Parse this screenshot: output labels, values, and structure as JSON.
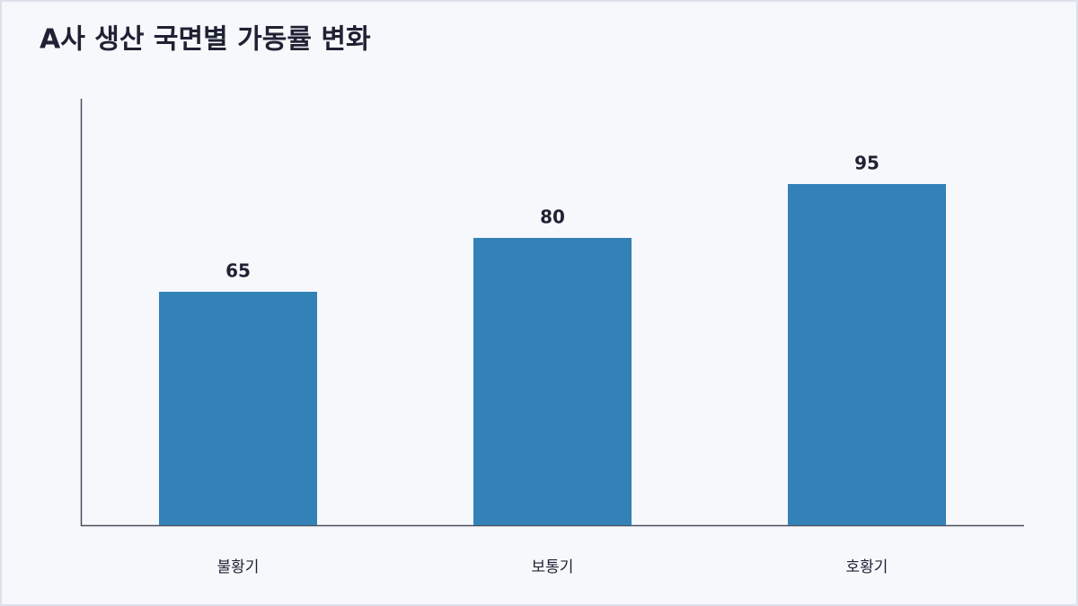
{
  "chart_data": {
    "type": "bar",
    "title": "A사 생산 국면별 가동률 변화",
    "categories": [
      "불황기",
      "보통기",
      "호황기"
    ],
    "values": [
      65,
      80,
      95
    ],
    "color": "#3282b8",
    "ylim": [
      0,
      118.75
    ],
    "grid": false
  }
}
